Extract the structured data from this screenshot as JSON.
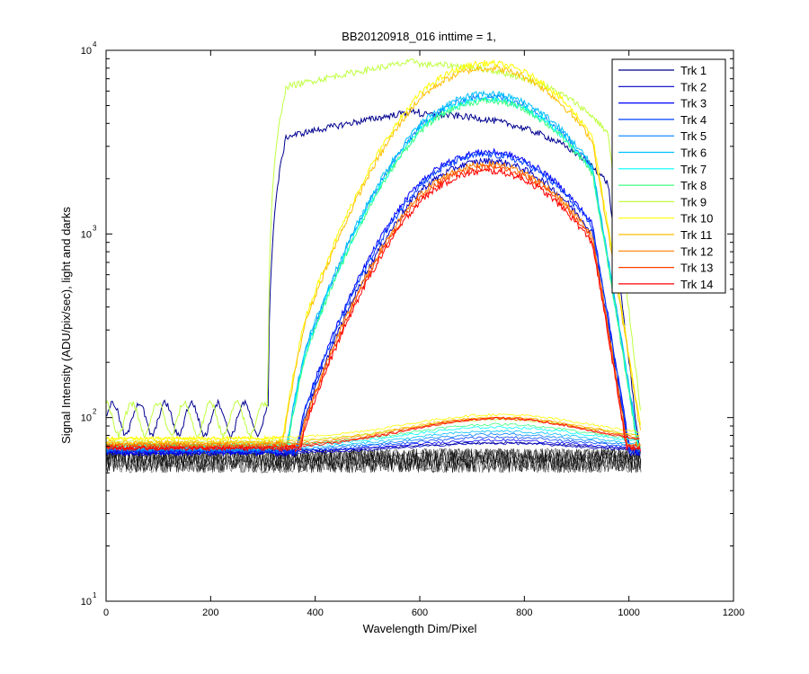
{
  "chart_data": {
    "type": "line",
    "title": "BB20120918_016 inttime = 1,",
    "xlabel": "Wavelength Dim/Pixel",
    "ylabel": "Signal Intensity (ADU/pix/sec), light and darks",
    "xlim": [
      0,
      1200
    ],
    "ylim": [
      10,
      10000
    ],
    "yscale": "log",
    "xticks": [
      0,
      200,
      400,
      600,
      800,
      1000,
      1200
    ],
    "yticks": [
      {
        "base": "10",
        "exp": "1",
        "value": 10
      },
      {
        "base": "10",
        "exp": "2",
        "value": 100
      },
      {
        "base": "10",
        "exp": "3",
        "value": 1000
      },
      {
        "base": "10",
        "exp": "4",
        "value": 10000
      }
    ],
    "legend_position": "top-right",
    "series": [
      {
        "name": "Trk 1",
        "color": "#00008F",
        "profile": "full",
        "peak": 4700,
        "dark": 66
      },
      {
        "name": "Trk 2",
        "color": "#0000BF",
        "profile": "mid",
        "peak": 2500,
        "dark": 64
      },
      {
        "name": "Trk 3",
        "color": "#0000FF",
        "profile": "mid",
        "peak": 2800,
        "dark": 65
      },
      {
        "name": "Trk 4",
        "color": "#003FFF",
        "profile": "mid",
        "peak": 2700,
        "dark": 66
      },
      {
        "name": "Trk 5",
        "color": "#007FFF",
        "profile": "high",
        "peak": 5600,
        "dark": 67
      },
      {
        "name": "Trk 6",
        "color": "#00BFFF",
        "profile": "high",
        "peak": 5800,
        "dark": 68
      },
      {
        "name": "Trk 7",
        "color": "#00FFFF",
        "profile": "high",
        "peak": 5400,
        "dark": 70
      },
      {
        "name": "Trk 8",
        "color": "#40FF80",
        "profile": "high",
        "peak": 5300,
        "dark": 71
      },
      {
        "name": "Trk 9",
        "color": "#BFFF40",
        "profile": "full",
        "peak": 8800,
        "dark": 74
      },
      {
        "name": "Trk 10",
        "color": "#FFFF00",
        "profile": "high",
        "peak": 8500,
        "dark": 77
      },
      {
        "name": "Trk 11",
        "color": "#FFBF00",
        "profile": "high",
        "peak": 8000,
        "dark": 73
      },
      {
        "name": "Trk 12",
        "color": "#FF7F00",
        "profile": "mid",
        "peak": 2400,
        "dark": 71
      },
      {
        "name": "Trk 13",
        "color": "#FF3F00",
        "profile": "mid",
        "peak": 2300,
        "dark": 69
      },
      {
        "name": "Trk 14",
        "color": "#FF0000",
        "profile": "mid",
        "peak": 2200,
        "dark": 68
      }
    ],
    "dark_color": "#000000",
    "dark_range": [
      50,
      68
    ]
  }
}
